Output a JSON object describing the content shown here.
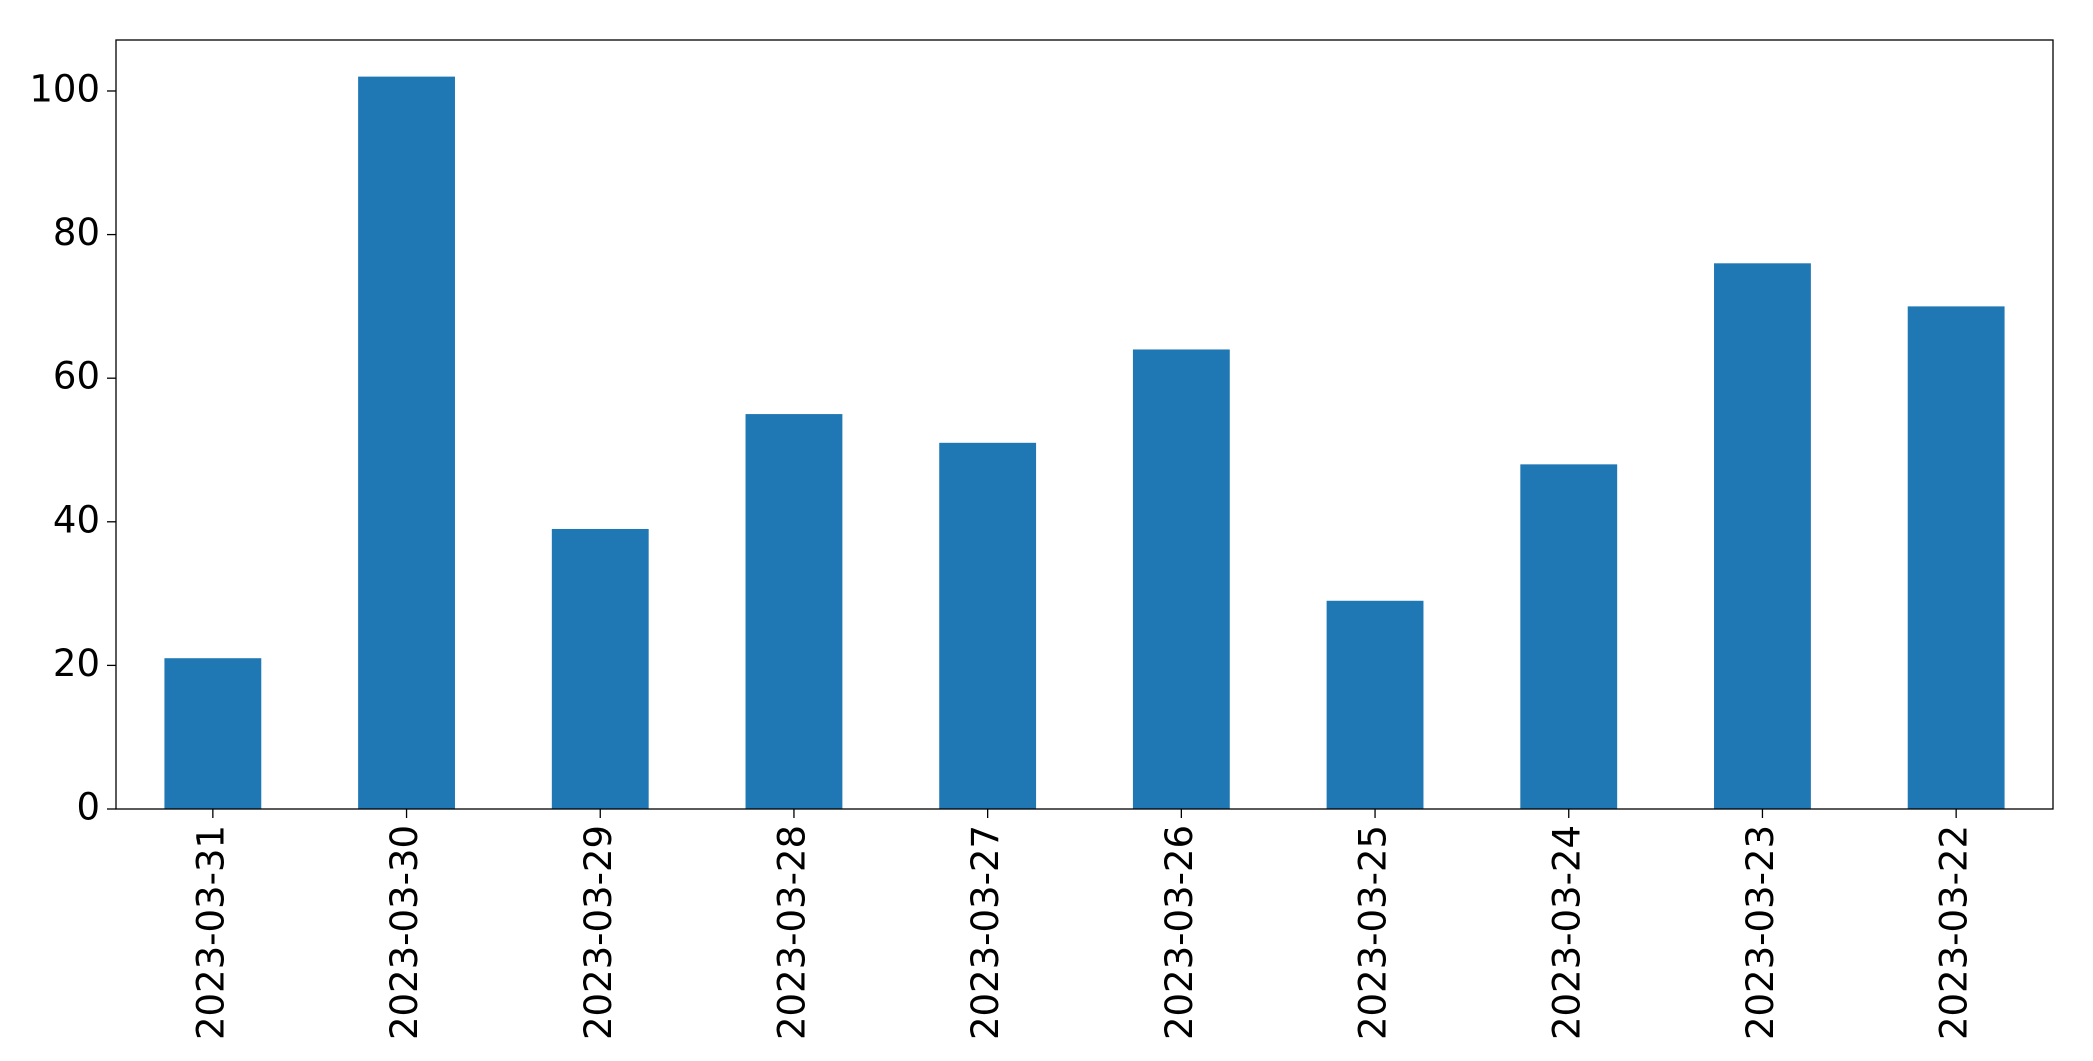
{
  "chart_data": {
    "type": "bar",
    "categories": [
      "2023-03-31",
      "2023-03-30",
      "2023-03-29",
      "2023-03-28",
      "2023-03-27",
      "2023-03-26",
      "2023-03-25",
      "2023-03-24",
      "2023-03-23",
      "2023-03-22"
    ],
    "values": [
      21,
      102,
      39,
      55,
      51,
      64,
      29,
      48,
      76,
      70
    ],
    "color": "#1f77b4",
    "ylim": [
      0,
      107.1
    ],
    "yticks": [
      0,
      20,
      40,
      60,
      80,
      100
    ],
    "grid": false
  }
}
